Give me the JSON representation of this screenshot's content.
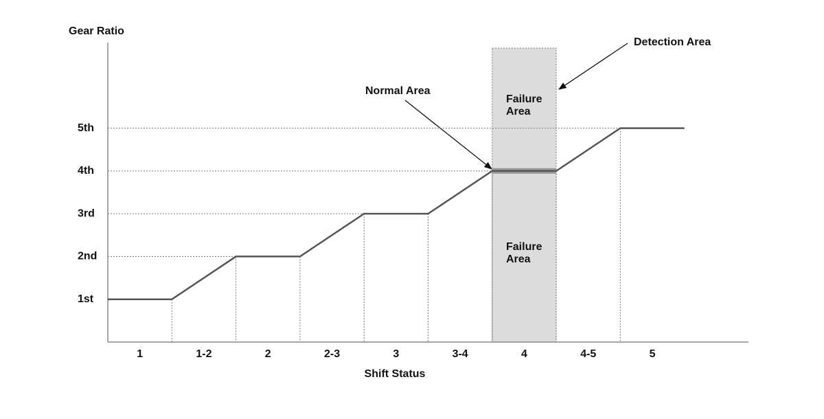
{
  "chart_data": {
    "type": "line",
    "y_label": "Gear Ratio",
    "x_label": "Shift Status",
    "x": [
      0,
      1,
      2,
      3,
      4,
      5,
      6,
      7,
      8,
      9
    ],
    "series": [
      {
        "values": [
          1,
          1,
          2,
          2,
          3,
          3,
          4,
          4,
          5,
          5
        ],
        "color": "#555555"
      }
    ],
    "xlim": [
      0,
      10
    ],
    "ylim": [
      0,
      7
    ],
    "xticks": [
      {
        "value": 0.5,
        "label": "1"
      },
      {
        "value": 1.5,
        "label": "1-2"
      },
      {
        "value": 2.5,
        "label": "2"
      },
      {
        "value": 3.5,
        "label": "2-3"
      },
      {
        "value": 4.5,
        "label": "3"
      },
      {
        "value": 5.5,
        "label": "3-4"
      },
      {
        "value": 6.5,
        "label": "4"
      },
      {
        "value": 7.5,
        "label": "4-5"
      },
      {
        "value": 8.5,
        "label": "5"
      }
    ],
    "yticks": [
      {
        "value": 1,
        "label": "1st"
      },
      {
        "value": 2,
        "label": "2nd"
      },
      {
        "value": 3,
        "label": "3rd"
      },
      {
        "value": 4,
        "label": "4th"
      },
      {
        "value": 5,
        "label": "5th"
      }
    ],
    "highlight": {
      "x": [
        6,
        7
      ],
      "color": "#dcdcdc"
    },
    "annotations": {
      "normal": "Normal Area",
      "detection": "Detection Area",
      "failure_upper": "Failure Area",
      "failure_lower": "Failure Area"
    }
  }
}
